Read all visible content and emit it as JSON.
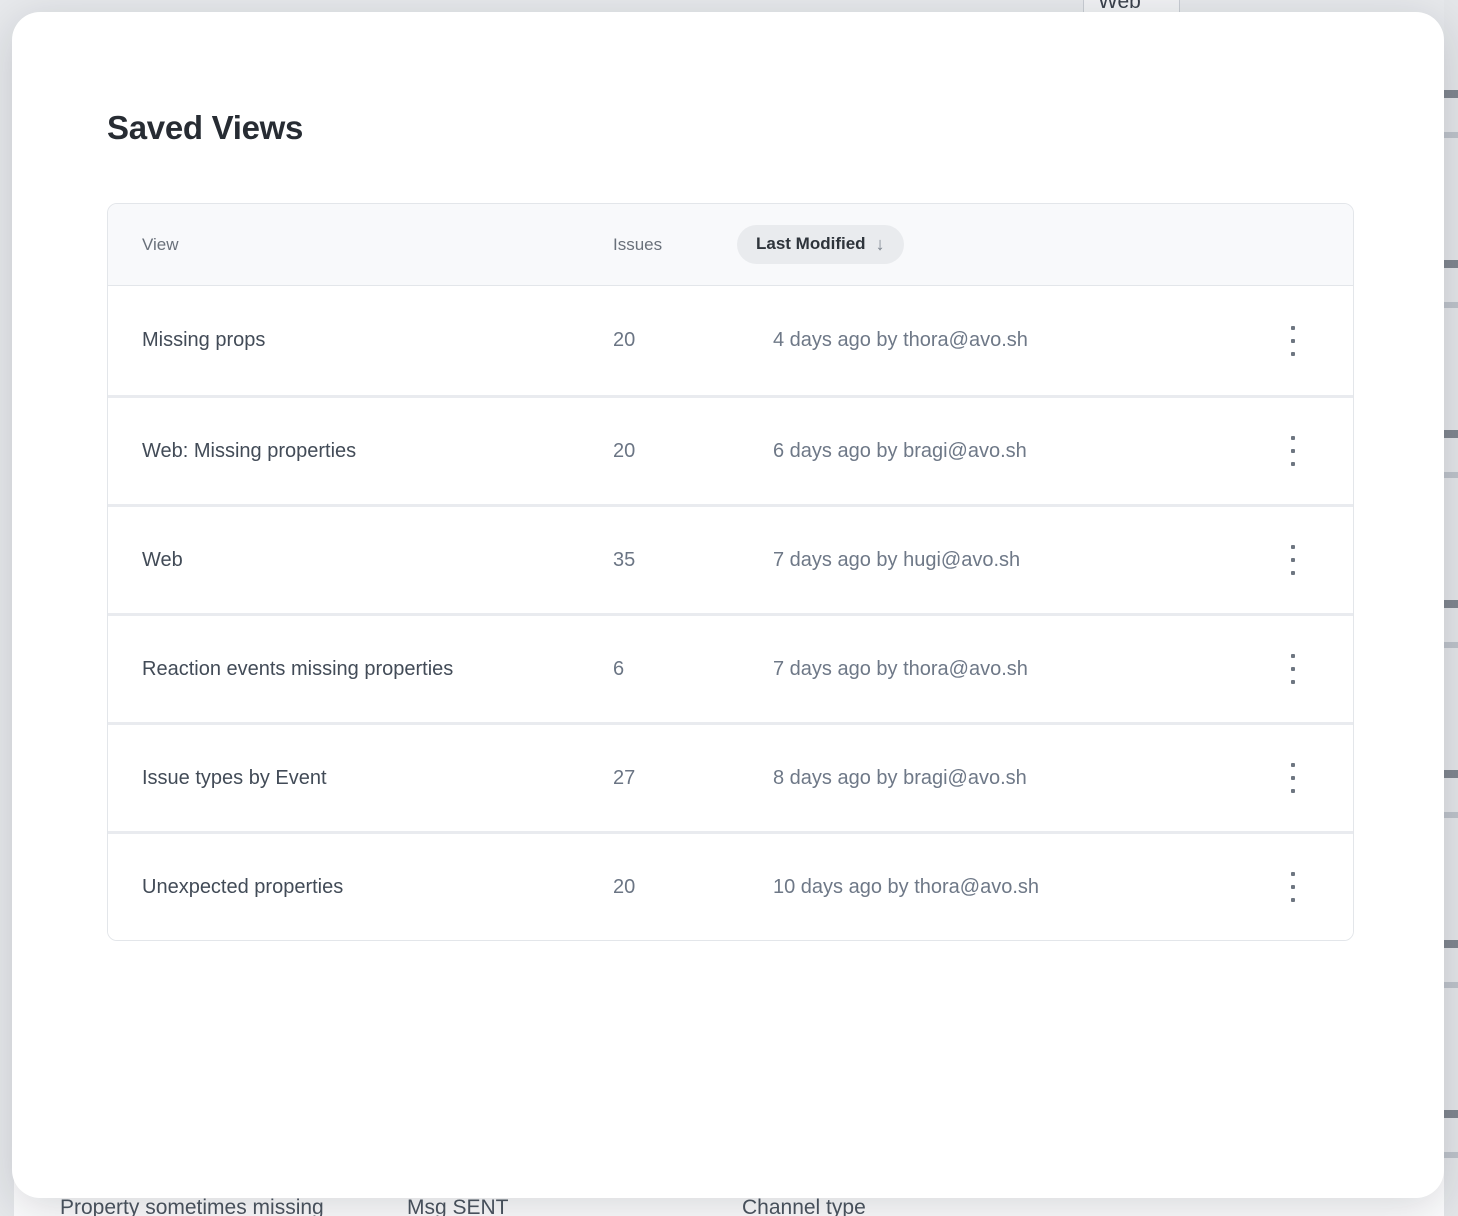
{
  "background": {
    "top_tab_label": "Web",
    "bottom_fragments": [
      "Property sometimes missing",
      "Msg SENT",
      "Channel type"
    ]
  },
  "modal": {
    "title": "Saved Views",
    "table": {
      "header": {
        "view": "View",
        "issues": "Issues",
        "last_modified": "Last Modified",
        "sort_arrow": "↓"
      },
      "sort": {
        "column": "Last Modified",
        "direction": "descending"
      },
      "rows": [
        {
          "view": "Missing props",
          "issues": "20",
          "last_modified": "4 days ago by thora@avo.sh"
        },
        {
          "view": "Web: Missing properties",
          "issues": "20",
          "last_modified": "6 days ago by bragi@avo.sh"
        },
        {
          "view": "Web",
          "issues": "35",
          "last_modified": "7 days ago by hugi@avo.sh"
        },
        {
          "view": "Reaction events missing properties",
          "issues": "6",
          "last_modified": "7 days ago by thora@avo.sh"
        },
        {
          "view": "Issue types by Event",
          "issues": "27",
          "last_modified": "8 days ago by bragi@avo.sh"
        },
        {
          "view": "Unexpected properties",
          "issues": "20",
          "last_modified": "10 days ago by thora@avo.sh"
        }
      ]
    }
  },
  "colors": {
    "page_background": "#e7e9ec",
    "modal_background": "#ffffff",
    "table_border": "#e3e6ea",
    "row_divider": "#e9ebef",
    "header_background": "#f8f9fb",
    "pill_background": "#e9ebee",
    "title_text": "#272c33",
    "row_text": "#424b57",
    "muted_text": "#6e7887"
  }
}
